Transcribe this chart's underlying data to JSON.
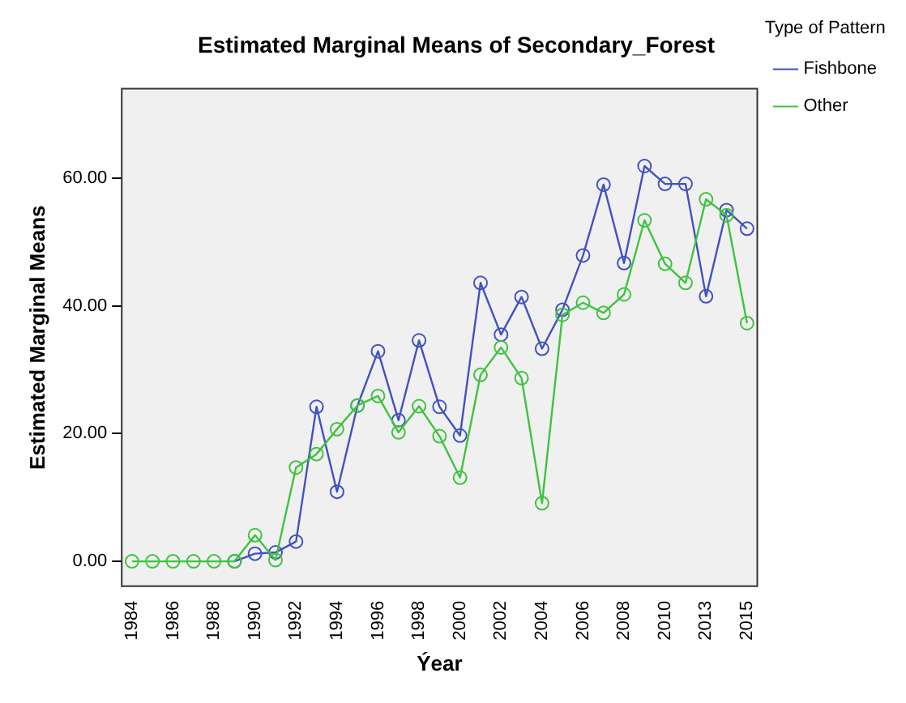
{
  "chart_data": {
    "type": "line",
    "title": "Estimated Marginal Means of Secondary_Forest",
    "xlabel": "Ýear",
    "ylabel": "Estimated Marginal Means",
    "legend_title": "Type of Pattern",
    "categories": [
      "1984",
      null,
      "1986",
      null,
      "1988",
      null,
      "1990",
      null,
      "1992",
      null,
      "1994",
      null,
      "1996",
      null,
      "1998",
      null,
      "2000",
      null,
      "2002",
      null,
      "2004",
      null,
      "2006",
      null,
      "2008",
      null,
      "2010",
      null,
      "2013",
      null,
      "2015"
    ],
    "series": [
      {
        "name": "Fishbone",
        "color": "#4152c0",
        "values": [
          null,
          null,
          null,
          null,
          null,
          0,
          1.2,
          1.4,
          3.1,
          24.2,
          10.9,
          24.4,
          32.9,
          22.1,
          34.6,
          24.2,
          19.7,
          43.6,
          35.5,
          41.4,
          33.3,
          39.4,
          47.9,
          59.0,
          46.7,
          61.9,
          59.1,
          59.1,
          41.5,
          55.0,
          52.1
        ]
      },
      {
        "name": "Other",
        "color": "#3fc33f",
        "values": [
          0,
          0,
          0,
          0,
          0,
          0,
          4.1,
          0.2,
          14.7,
          16.8,
          20.7,
          24.4,
          25.9,
          20.2,
          24.3,
          19.6,
          13.1,
          29.2,
          33.5,
          28.7,
          9.1,
          38.6,
          40.5,
          38.9,
          41.8,
          53.4,
          46.6,
          43.6,
          56.7,
          54.2,
          37.3
        ]
      }
    ],
    "ylim": [
      -3.9,
      74
    ],
    "yticks": [
      {
        "value": 0,
        "label": "0.00"
      },
      {
        "value": 20,
        "label": "20.00"
      },
      {
        "value": 40,
        "label": "40.00"
      },
      {
        "value": 60,
        "label": "60.00"
      }
    ],
    "grid": false,
    "legend": "top right",
    "marker": "circle",
    "line_style": "solid"
  }
}
